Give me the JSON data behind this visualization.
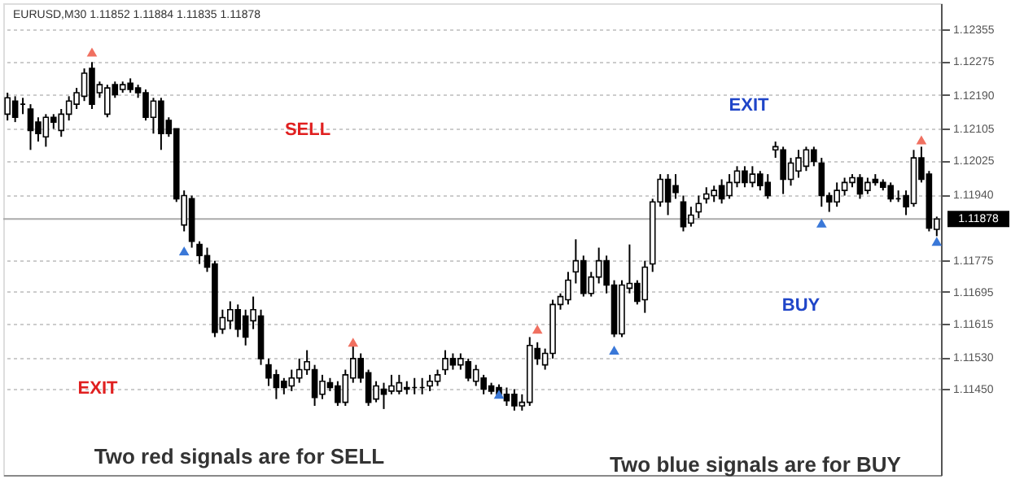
{
  "chart_data": {
    "type": "candlestick",
    "title": "EURUSD,M30  1.11852 1.11884 1.11835 1.11878",
    "categories": [
      null,
      null,
      null,
      null,
      null,
      null,
      null,
      null,
      null,
      null,
      null,
      null,
      null,
      null,
      null,
      null,
      null,
      null,
      null,
      null,
      null,
      null,
      null,
      null,
      null,
      null,
      null,
      null,
      null,
      null,
      null,
      null,
      null,
      null,
      null,
      null,
      null,
      null,
      null,
      null,
      null,
      null,
      null,
      null,
      null,
      null,
      null,
      null,
      null,
      null,
      null,
      null,
      null,
      null,
      null,
      null,
      null,
      null,
      null,
      null,
      null,
      null,
      null,
      null,
      null,
      null,
      null,
      null,
      null,
      null,
      null,
      null,
      null,
      null,
      null,
      null,
      null,
      null,
      null,
      null,
      null,
      null,
      null,
      null,
      null,
      null,
      null,
      null,
      null,
      null,
      null,
      null,
      null,
      null,
      null,
      null,
      null,
      null,
      null,
      null,
      null,
      null,
      null,
      null,
      null,
      null,
      null,
      null,
      null,
      null,
      null,
      null,
      null,
      null,
      null,
      null,
      null,
      null,
      null,
      null,
      null,
      null
    ],
    "ohlc": [
      [
        1.12142,
        1.12196,
        1.12126,
        1.12183
      ],
      [
        1.12175,
        1.12187,
        1.12122,
        1.12134
      ],
      [
        1.12167,
        1.12183,
        1.12142,
        1.12167
      ],
      [
        1.12155,
        1.12167,
        1.12052,
        1.12101
      ],
      [
        1.12122,
        1.12134,
        1.12073,
        1.12093
      ],
      [
        1.12085,
        1.12142,
        1.1206,
        1.12134
      ],
      [
        1.12134,
        1.12142,
        1.12105,
        1.12122
      ],
      [
        1.12101,
        1.12155,
        1.12085,
        1.12142
      ],
      [
        1.12142,
        1.12187,
        1.12126,
        1.12175
      ],
      [
        1.12167,
        1.12208,
        1.12155,
        1.12196
      ],
      [
        1.12187,
        1.12257,
        1.12175,
        1.12245
      ],
      [
        1.12257,
        1.12273,
        1.12155,
        1.12167
      ],
      [
        1.12196,
        1.12224,
        1.12183,
        1.12216
      ],
      [
        1.12142,
        1.12216,
        1.12134,
        1.12208
      ],
      [
        1.12216,
        1.12224,
        1.12183,
        1.12191
      ],
      [
        1.12204,
        1.12224,
        1.12196,
        1.12216
      ],
      [
        1.1222,
        1.12232,
        1.12196,
        1.12204
      ],
      [
        1.12208,
        1.12216,
        1.12183,
        1.12196
      ],
      [
        1.12196,
        1.12204,
        1.12126,
        1.12134
      ],
      [
        1.12134,
        1.12183,
        1.12093,
        1.12175
      ],
      [
        1.12175,
        1.12183,
        1.12052,
        1.12093
      ],
      [
        1.12126,
        1.12134,
        1.12085,
        1.12093
      ],
      [
        1.12105,
        1.12105,
        1.11921,
        1.11929
      ],
      [
        1.11863,
        1.1195,
        1.11847,
        1.11937
      ],
      [
        1.11929,
        1.11937,
        1.11806,
        1.11822
      ],
      [
        1.11814,
        1.11822,
        1.11765,
        1.11786
      ],
      [
        1.11786,
        1.11806,
        1.11745,
        1.11757
      ],
      [
        1.11765,
        1.11773,
        1.11581,
        1.11593
      ],
      [
        1.11601,
        1.1165,
        1.11589,
        1.1163
      ],
      [
        1.11622,
        1.11671,
        1.11601,
        1.1165
      ],
      [
        1.1165,
        1.11663,
        1.11581,
        1.11601
      ],
      [
        1.11634,
        1.1165,
        1.1156,
        1.11581
      ],
      [
        1.11622,
        1.11683,
        1.11601,
        1.1165
      ],
      [
        1.11634,
        1.1165,
        1.11511,
        1.11527
      ],
      [
        1.11511,
        1.11527,
        1.11458,
        1.11478
      ],
      [
        1.11486,
        1.11499,
        1.11425,
        1.11454
      ],
      [
        1.1147,
        1.11478,
        1.11437,
        1.11454
      ],
      [
        1.11458,
        1.11499,
        1.11445,
        1.11478
      ],
      [
        1.11478,
        1.11527,
        1.11466,
        1.11499
      ],
      [
        1.11499,
        1.11548,
        1.11486,
        1.11519
      ],
      [
        1.11499,
        1.11511,
        1.11408,
        1.11429
      ],
      [
        1.11437,
        1.11486,
        1.11425,
        1.1147
      ],
      [
        1.11466,
        1.11478,
        1.11445,
        1.11454
      ],
      [
        1.11458,
        1.1147,
        1.11408,
        1.11417
      ],
      [
        1.11417,
        1.11499,
        1.11408,
        1.11486
      ],
      [
        1.11478,
        1.1156,
        1.11466,
        1.11527
      ],
      [
        1.11527,
        1.1154,
        1.11466,
        1.11478
      ],
      [
        1.11491,
        1.11499,
        1.11408,
        1.11417
      ],
      [
        1.11425,
        1.1147,
        1.11417,
        1.11458
      ],
      [
        1.1145,
        1.11466,
        1.114,
        1.11437
      ],
      [
        1.11445,
        1.11486,
        1.11437,
        1.11458
      ],
      [
        1.11445,
        1.11486,
        1.11437,
        1.11466
      ],
      [
        1.11454,
        1.1147,
        1.11437,
        1.1145
      ],
      [
        1.11454,
        1.11478,
        1.11437,
        1.11454
      ],
      [
        1.11454,
        1.11478,
        1.11437,
        1.11454
      ],
      [
        1.11458,
        1.11486,
        1.11445,
        1.1147
      ],
      [
        1.1147,
        1.11499,
        1.11458,
        1.11486
      ],
      [
        1.11499,
        1.11548,
        1.11486,
        1.11527
      ],
      [
        1.11527,
        1.1154,
        1.11499,
        1.11511
      ],
      [
        1.11511,
        1.1154,
        1.11499,
        1.11527
      ],
      [
        1.11519,
        1.11527,
        1.1147,
        1.11478
      ],
      [
        1.1147,
        1.11511,
        1.11458,
        1.11499
      ],
      [
        1.11478,
        1.11486,
        1.11437,
        1.1145
      ],
      [
        1.11458,
        1.11466,
        1.11437,
        1.11445
      ],
      [
        1.11454,
        1.11462,
        1.11429,
        1.11437
      ],
      [
        1.11437,
        1.11454,
        1.11408,
        1.11421
      ],
      [
        1.11437,
        1.1145,
        1.11396,
        1.11408
      ],
      [
        1.11408,
        1.11437,
        1.11396,
        1.11417
      ],
      [
        1.11417,
        1.11581,
        1.11408,
        1.1156
      ],
      [
        1.11552,
        1.11568,
        1.11511,
        1.11527
      ],
      [
        1.11511,
        1.11552,
        1.11499,
        1.1154
      ],
      [
        1.1154,
        1.11675,
        1.11527,
        1.11663
      ],
      [
        1.11663,
        1.11691,
        1.1165,
        1.11683
      ],
      [
        1.11675,
        1.11745,
        1.11663,
        1.11724
      ],
      [
        1.11745,
        1.11827,
        1.11716,
        1.11773
      ],
      [
        1.11773,
        1.11786,
        1.11683,
        1.11691
      ],
      [
        1.11691,
        1.11745,
        1.11683,
        1.11732
      ],
      [
        1.11732,
        1.11806,
        1.11716,
        1.11773
      ],
      [
        1.11773,
        1.11786,
        1.11691,
        1.11712
      ],
      [
        1.11712,
        1.11724,
        1.11581,
        1.11589
      ],
      [
        1.11589,
        1.11724,
        1.11581,
        1.11712
      ],
      [
        1.11704,
        1.11814,
        1.11691,
        1.11716
      ],
      [
        1.11716,
        1.11724,
        1.11663,
        1.11671
      ],
      [
        1.11675,
        1.11773,
        1.11642,
        1.11757
      ],
      [
        1.11765,
        1.11929,
        1.11745,
        1.11921
      ],
      [
        1.11921,
        1.11991,
        1.11909,
        1.11978
      ],
      [
        1.11978,
        1.11991,
        1.11888,
        1.11921
      ],
      [
        1.11962,
        1.11991,
        1.11929,
        1.11945
      ],
      [
        1.11921,
        1.11937,
        1.11847,
        1.11859
      ],
      [
        1.11868,
        1.11909,
        1.11859,
        1.11888
      ],
      [
        1.11896,
        1.11937,
        1.1188,
        1.11917
      ],
      [
        1.11929,
        1.11958,
        1.11917,
        1.11941
      ],
      [
        1.11937,
        1.11962,
        1.11921,
        1.1195
      ],
      [
        1.11962,
        1.11978,
        1.11917,
        1.11929
      ],
      [
        1.11937,
        1.11991,
        1.11929,
        1.1197
      ],
      [
        1.1197,
        1.12011,
        1.11958,
        1.11999
      ],
      [
        1.11999,
        1.12011,
        1.11958,
        1.1197
      ],
      [
        1.1197,
        1.12011,
        1.11958,
        1.11991
      ],
      [
        1.11991,
        1.11999,
        1.1195,
        1.11962
      ],
      [
        1.1197,
        1.11991,
        1.11929,
        1.11937
      ],
      [
        1.12052,
        1.12073,
        1.12032,
        1.1206
      ],
      [
        1.12052,
        1.1206,
        1.11941,
        1.11978
      ],
      [
        1.11978,
        1.12032,
        1.11962,
        1.12019
      ],
      [
        1.11999,
        1.12052,
        1.11982,
        1.12032
      ],
      [
        1.12011,
        1.1206,
        1.11999,
        1.12052
      ],
      [
        1.12052,
        1.1206,
        1.12011,
        1.12023
      ],
      [
        1.12019,
        1.12032,
        1.11909,
        1.11937
      ],
      [
        1.11937,
        1.11945,
        1.11896,
        1.11921
      ],
      [
        1.11921,
        1.1197,
        1.11909,
        1.1195
      ],
      [
        1.1195,
        1.11982,
        1.11937,
        1.1197
      ],
      [
        1.1197,
        1.11991,
        1.11958,
        1.11982
      ],
      [
        1.11982,
        1.11991,
        1.11929,
        1.11941
      ],
      [
        1.1195,
        1.11982,
        1.11941,
        1.1197
      ],
      [
        1.11978,
        1.11991,
        1.11962,
        1.1197
      ],
      [
        1.1197,
        1.11978,
        1.1195,
        1.11958
      ],
      [
        1.11962,
        1.1197,
        1.11921,
        1.11929
      ],
      [
        1.11929,
        1.1195,
        1.11921,
        1.11929
      ],
      [
        1.11937,
        1.1195,
        1.11888,
        1.11909
      ],
      [
        1.11917,
        1.12052,
        1.11909,
        1.12032
      ],
      [
        1.12032,
        1.1206,
        1.1197,
        1.11978
      ],
      [
        1.11991,
        1.11999,
        1.11847,
        1.11855
      ],
      [
        1.11852,
        1.11884,
        1.11835,
        1.11878
      ]
    ],
    "series": [
      {
        "type": "scatter",
        "marker": "triangle",
        "color": "#f07060",
        "values": [
          null,
          null,
          null,
          null,
          null,
          null,
          null,
          null,
          null,
          null,
          null,
          1.12298,
          null,
          null,
          null,
          null,
          null,
          null,
          null,
          null,
          null,
          null,
          null,
          null,
          null,
          null,
          null,
          null,
          null,
          null,
          null,
          null,
          null,
          null,
          null,
          null,
          null,
          null,
          null,
          null,
          null,
          null,
          null,
          null,
          null,
          1.11568,
          null,
          null,
          null,
          null,
          null,
          null,
          null,
          null,
          null,
          null,
          null,
          null,
          null,
          null,
          null,
          null,
          null,
          null,
          null,
          null,
          null,
          null,
          null,
          1.11601,
          null,
          null,
          null,
          null,
          null,
          null,
          null,
          null,
          null,
          null,
          null,
          null,
          null,
          null,
          null,
          null,
          null,
          null,
          null,
          null,
          null,
          null,
          null,
          null,
          null,
          null,
          null,
          null,
          null,
          null,
          null,
          null,
          null,
          null,
          null,
          null,
          null,
          null,
          null,
          null,
          null,
          null,
          null,
          null,
          null,
          null,
          null,
          null,
          null,
          1.12077,
          null,
          null
        ]
      },
      {
        "type": "scatter",
        "marker": "triangle",
        "color": "#3a78d8",
        "values": [
          null,
          null,
          null,
          null,
          null,
          null,
          null,
          null,
          null,
          null,
          null,
          null,
          null,
          null,
          null,
          null,
          null,
          null,
          null,
          null,
          null,
          null,
          null,
          1.11798,
          null,
          null,
          null,
          null,
          null,
          null,
          null,
          null,
          null,
          null,
          null,
          null,
          null,
          null,
          null,
          null,
          null,
          null,
          null,
          null,
          null,
          null,
          null,
          null,
          null,
          null,
          null,
          null,
          null,
          null,
          null,
          null,
          null,
          null,
          null,
          null,
          null,
          null,
          null,
          null,
          1.11437,
          null,
          null,
          null,
          null,
          null,
          null,
          null,
          null,
          null,
          null,
          null,
          null,
          null,
          null,
          1.11548,
          null,
          null,
          null,
          null,
          null,
          null,
          null,
          null,
          null,
          null,
          null,
          null,
          null,
          null,
          null,
          null,
          null,
          null,
          null,
          null,
          null,
          null,
          null,
          null,
          null,
          null,
          1.11868,
          null,
          null,
          null,
          null,
          null,
          null,
          null,
          null,
          null,
          null,
          null,
          null,
          null,
          null,
          1.11822
        ]
      }
    ],
    "ylim": [
      1.11234,
      1.12421
    ],
    "yticks": [
      1.12355,
      1.12275,
      {
        "value": 1.1219,
        "label": "1.12190"
      },
      1.12105,
      1.12025,
      {
        "value": 1.1194,
        "label": "1.11940"
      },
      1.11775,
      1.11695,
      1.11615,
      {
        "value": 1.1153,
        "label": "1.11530"
      },
      {
        "value": 1.1145,
        "label": "1.11450"
      }
    ],
    "ref_lines": [
      {
        "axis": "y",
        "value": 1.11878,
        "label": "1.11878",
        "color": "#aaaaaa"
      }
    ],
    "grid": "y",
    "tick_labels": "y",
    "annotations": [
      "SELL",
      "EXIT",
      "EXIT",
      "BUY",
      "Two red signals are for SELL",
      "Two blue signals are for BUY"
    ]
  }
}
